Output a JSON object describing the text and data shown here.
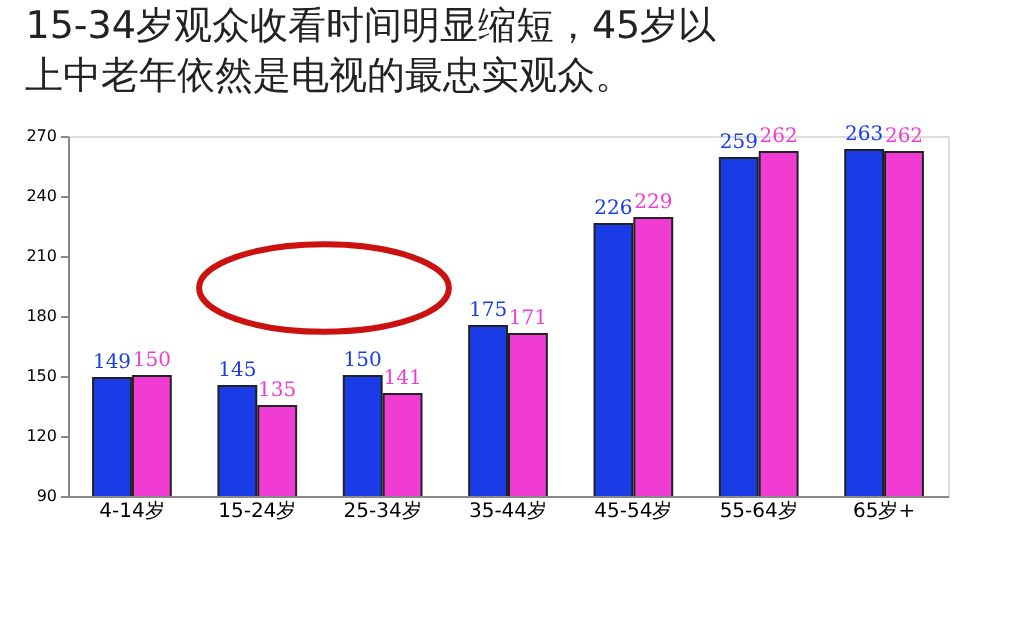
{
  "chart_data": {
    "type": "bar",
    "title": "15-34岁观众收看时间明显缩短，45岁以上中老年依然是电视的最忠实观众。",
    "categories": [
      "4-14岁",
      "15-24岁",
      "25-34岁",
      "35-44岁",
      "45-54岁",
      "55-64岁",
      "65岁+"
    ],
    "series": [
      {
        "color": "#1a3ce6",
        "values": [
          149,
          145,
          150,
          175,
          226,
          259,
          263
        ]
      },
      {
        "color": "#f03cd2",
        "values": [
          150,
          135,
          141,
          171,
          229,
          262,
          262
        ]
      }
    ],
    "ylim": [
      90,
      270
    ],
    "yticks": [
      90,
      120,
      150,
      180,
      210,
      240,
      270
    ],
    "data_labels": true,
    "grid": false,
    "legend": false
  }
}
